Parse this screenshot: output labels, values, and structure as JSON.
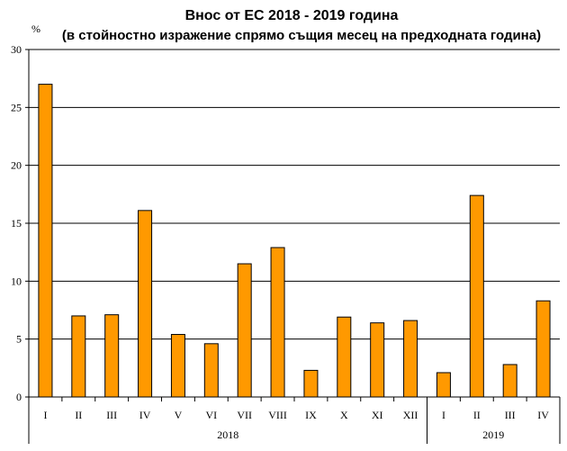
{
  "chart_data": {
    "type": "bar",
    "title": "Внос от ЕС 2018 - 2019 година",
    "subtitle": "(в стойностно изражение спрямо същия месец на предходната година)",
    "ylabel": "%",
    "xlabel": "",
    "ylim": [
      0,
      30
    ],
    "yticks": [
      "0",
      "5",
      "10",
      "15",
      "20",
      "25",
      "30"
    ],
    "grid": true,
    "legend": "none",
    "colors": {
      "bar_fill": "#FF9900",
      "bar_stroke": "#000000",
      "grid": "#000000",
      "axis": "#000000"
    },
    "categories": [
      "I",
      "II",
      "III",
      "IV",
      "V",
      "VI",
      "VII",
      "VIII",
      "IX",
      "X",
      "XI",
      "XII",
      "I",
      "II",
      "III",
      "IV"
    ],
    "values": [
      27.0,
      7.0,
      7.1,
      16.1,
      5.4,
      4.6,
      11.5,
      12.9,
      2.3,
      6.9,
      6.4,
      6.6,
      2.1,
      17.4,
      2.8,
      8.3
    ],
    "groups": [
      {
        "label": "2018",
        "count": 12
      },
      {
        "label": "2019",
        "count": 4
      }
    ]
  }
}
